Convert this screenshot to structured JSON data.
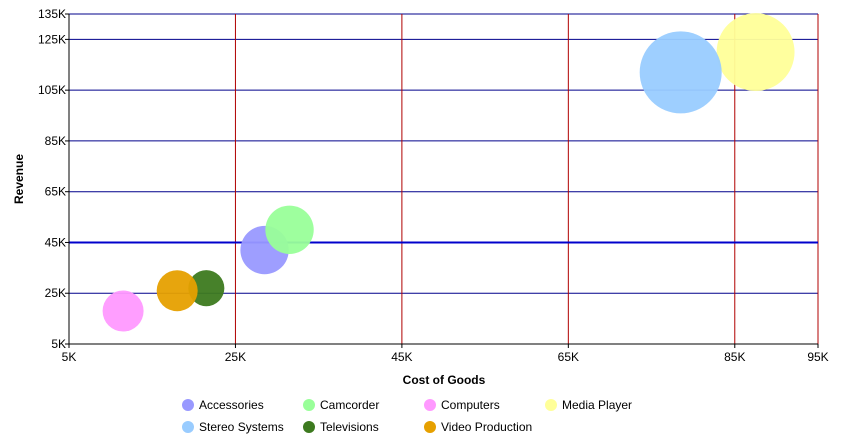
{
  "chart_data": {
    "type": "scatter",
    "subtype": "bubble",
    "xlabel": "Cost of Goods",
    "ylabel": "Revenue",
    "xlim": [
      5000,
      95000
    ],
    "ylim": [
      5000,
      135000
    ],
    "x_ticks": [
      5000,
      25000,
      45000,
      65000,
      85000,
      95000
    ],
    "x_tick_labels": [
      "5K",
      "25K",
      "45K",
      "65K",
      "85K",
      "95K"
    ],
    "y_ticks": [
      5000,
      25000,
      45000,
      65000,
      85000,
      105000,
      125000,
      135000
    ],
    "y_tick_labels": [
      "5K",
      "25K",
      "45K",
      "65K",
      "85K",
      "105K",
      "125K",
      "135K"
    ],
    "grid": true,
    "reference_line_y": 45000,
    "legend_position": "bottom",
    "colors": {
      "horizontal_grid": "#00008b",
      "vertical_grid": "#b00000",
      "reference_line": "#0000cc"
    },
    "series": [
      {
        "name": "Accessories",
        "color": "#9999ff",
        "x": 28500,
        "y": 42000,
        "size": 0.59
      },
      {
        "name": "Camcorder",
        "color": "#99ff99",
        "x": 31500,
        "y": 50000,
        "size": 0.59
      },
      {
        "name": "Computers",
        "color": "#ff99ff",
        "x": 11500,
        "y": 18000,
        "size": 0.5
      },
      {
        "name": "Media Player",
        "color": "#ffff99",
        "x": 87500,
        "y": 120000,
        "size": 0.95
      },
      {
        "name": "Stereo Systems",
        "color": "#99ccff",
        "x": 78500,
        "y": 112000,
        "size": 1.0
      },
      {
        "name": "Televisions",
        "color": "#3d7a1f",
        "x": 21500,
        "y": 27000,
        "size": 0.44
      },
      {
        "name": "Video Production",
        "color": "#e6a000",
        "x": 18000,
        "y": 26000,
        "size": 0.5
      }
    ]
  }
}
